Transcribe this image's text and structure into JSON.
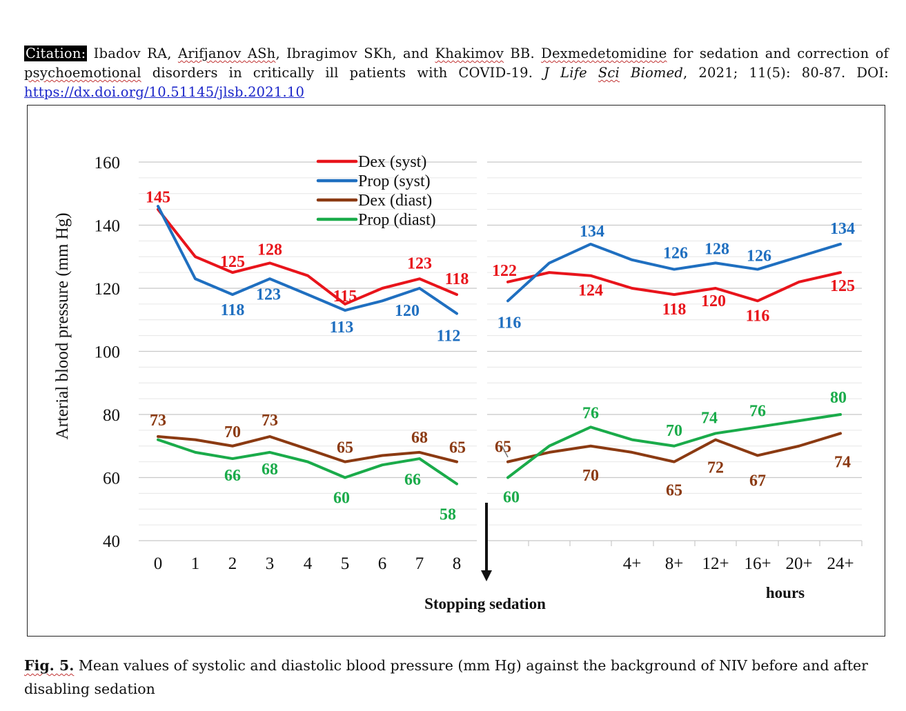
{
  "citation": {
    "tag": "Citation:",
    "authors_1": "Ibadov RA,",
    "authors_2": "Arifjanov ASh",
    "authors_3": ", Ibragimov SKh, and",
    "authors_4": "Khakimov",
    "authors_5": "BB.",
    "title_1": "Dexmedetomidine",
    "title_2": "for sedation and correction of",
    "title_3": "psychoemotional",
    "title_4": "disorders in critically ill patients with COVID-19.",
    "journal_1": "J Life",
    "journal_2": "Sci",
    "journal_3": "Biomed",
    "details": ", 2021; 11(5): 80-87. DOI:",
    "doi_link": "https://dx.doi.org/10.51145/jlsb.2021.10"
  },
  "caption": {
    "label": "Fig. 5.",
    "text": " Mean values of systolic and diastolic blood pressure (mm Hg) against the background of NIV before and after disabling sedation"
  },
  "chart_data": {
    "type": "line",
    "ylabel": "Arterial blood pressure (mm Hg)",
    "ylim": [
      40,
      160
    ],
    "yticks": [
      40,
      60,
      80,
      100,
      120,
      140,
      160
    ],
    "grid": true,
    "legend_position": "top-center",
    "annotation_stop": "Stopping sedation",
    "hours_label": "hours",
    "panels": [
      {
        "name": "before",
        "x": [
          "0",
          "1",
          "2",
          "3",
          "4",
          "5",
          "6",
          "7",
          "8"
        ]
      },
      {
        "name": "after",
        "x": [
          "",
          "",
          "",
          "4+",
          "8+",
          "12+",
          "16+",
          "20+",
          "24+"
        ]
      }
    ],
    "series": [
      {
        "name": "Dex (syst)",
        "color": "#e8141b",
        "label_color": "#e8141b",
        "before": [
          145,
          130,
          125,
          128,
          124,
          115,
          120,
          123,
          118
        ],
        "after": [
          122,
          125,
          124,
          120,
          118,
          120,
          116,
          122,
          125
        ],
        "labels_before": {
          "0": "145",
          "2": "125",
          "3": "128",
          "5": "115",
          "7": "123",
          "8": "118"
        },
        "labels_after": {
          "0": "122",
          "2": "124",
          "4": "118",
          "5": "120",
          "6": "116",
          "8": "125"
        }
      },
      {
        "name": "Prop (syst)",
        "color": "#1f6fc0",
        "label_color": "#1f6fc0",
        "before": [
          146,
          123,
          118,
          123,
          118,
          113,
          116,
          120,
          112
        ],
        "after": [
          116,
          128,
          134,
          129,
          126,
          128,
          126,
          130,
          134
        ],
        "labels_before": {
          "2": "118",
          "3": "123",
          "5": "113",
          "7": "120",
          "8": "112"
        },
        "labels_after": {
          "0": "116",
          "2": "134",
          "4": "126",
          "5": "128",
          "6": "126",
          "8": "134"
        }
      },
      {
        "name": "Dex (diast)",
        "color": "#8b3a12",
        "label_color": "#8b3a12",
        "before": [
          73,
          72,
          70,
          73,
          69,
          65,
          67,
          68,
          65
        ],
        "after": [
          65,
          68,
          70,
          68,
          65,
          72,
          67,
          70,
          74
        ],
        "labels_before": {
          "0": "73",
          "2": "70",
          "3": "73",
          "5": "65",
          "7": "68",
          "8": "65"
        },
        "labels_after": {
          "0": "65",
          "2": "70",
          "4": "65",
          "5": "72",
          "6": "67",
          "8": "74"
        }
      },
      {
        "name": "Prop (diast)",
        "color": "#1aab4a",
        "label_color": "#1aab4a",
        "before": [
          72,
          68,
          66,
          68,
          65,
          60,
          64,
          66,
          58
        ],
        "after": [
          60,
          70,
          76,
          72,
          70,
          74,
          76,
          78,
          80
        ],
        "labels_before": {
          "2": "66",
          "3": "68",
          "5": "60",
          "7": "66",
          "8": "58"
        },
        "labels_after": {
          "0": "60",
          "2": "76",
          "4": "70",
          "5": "74",
          "6": "76",
          "8": "80"
        }
      }
    ]
  }
}
